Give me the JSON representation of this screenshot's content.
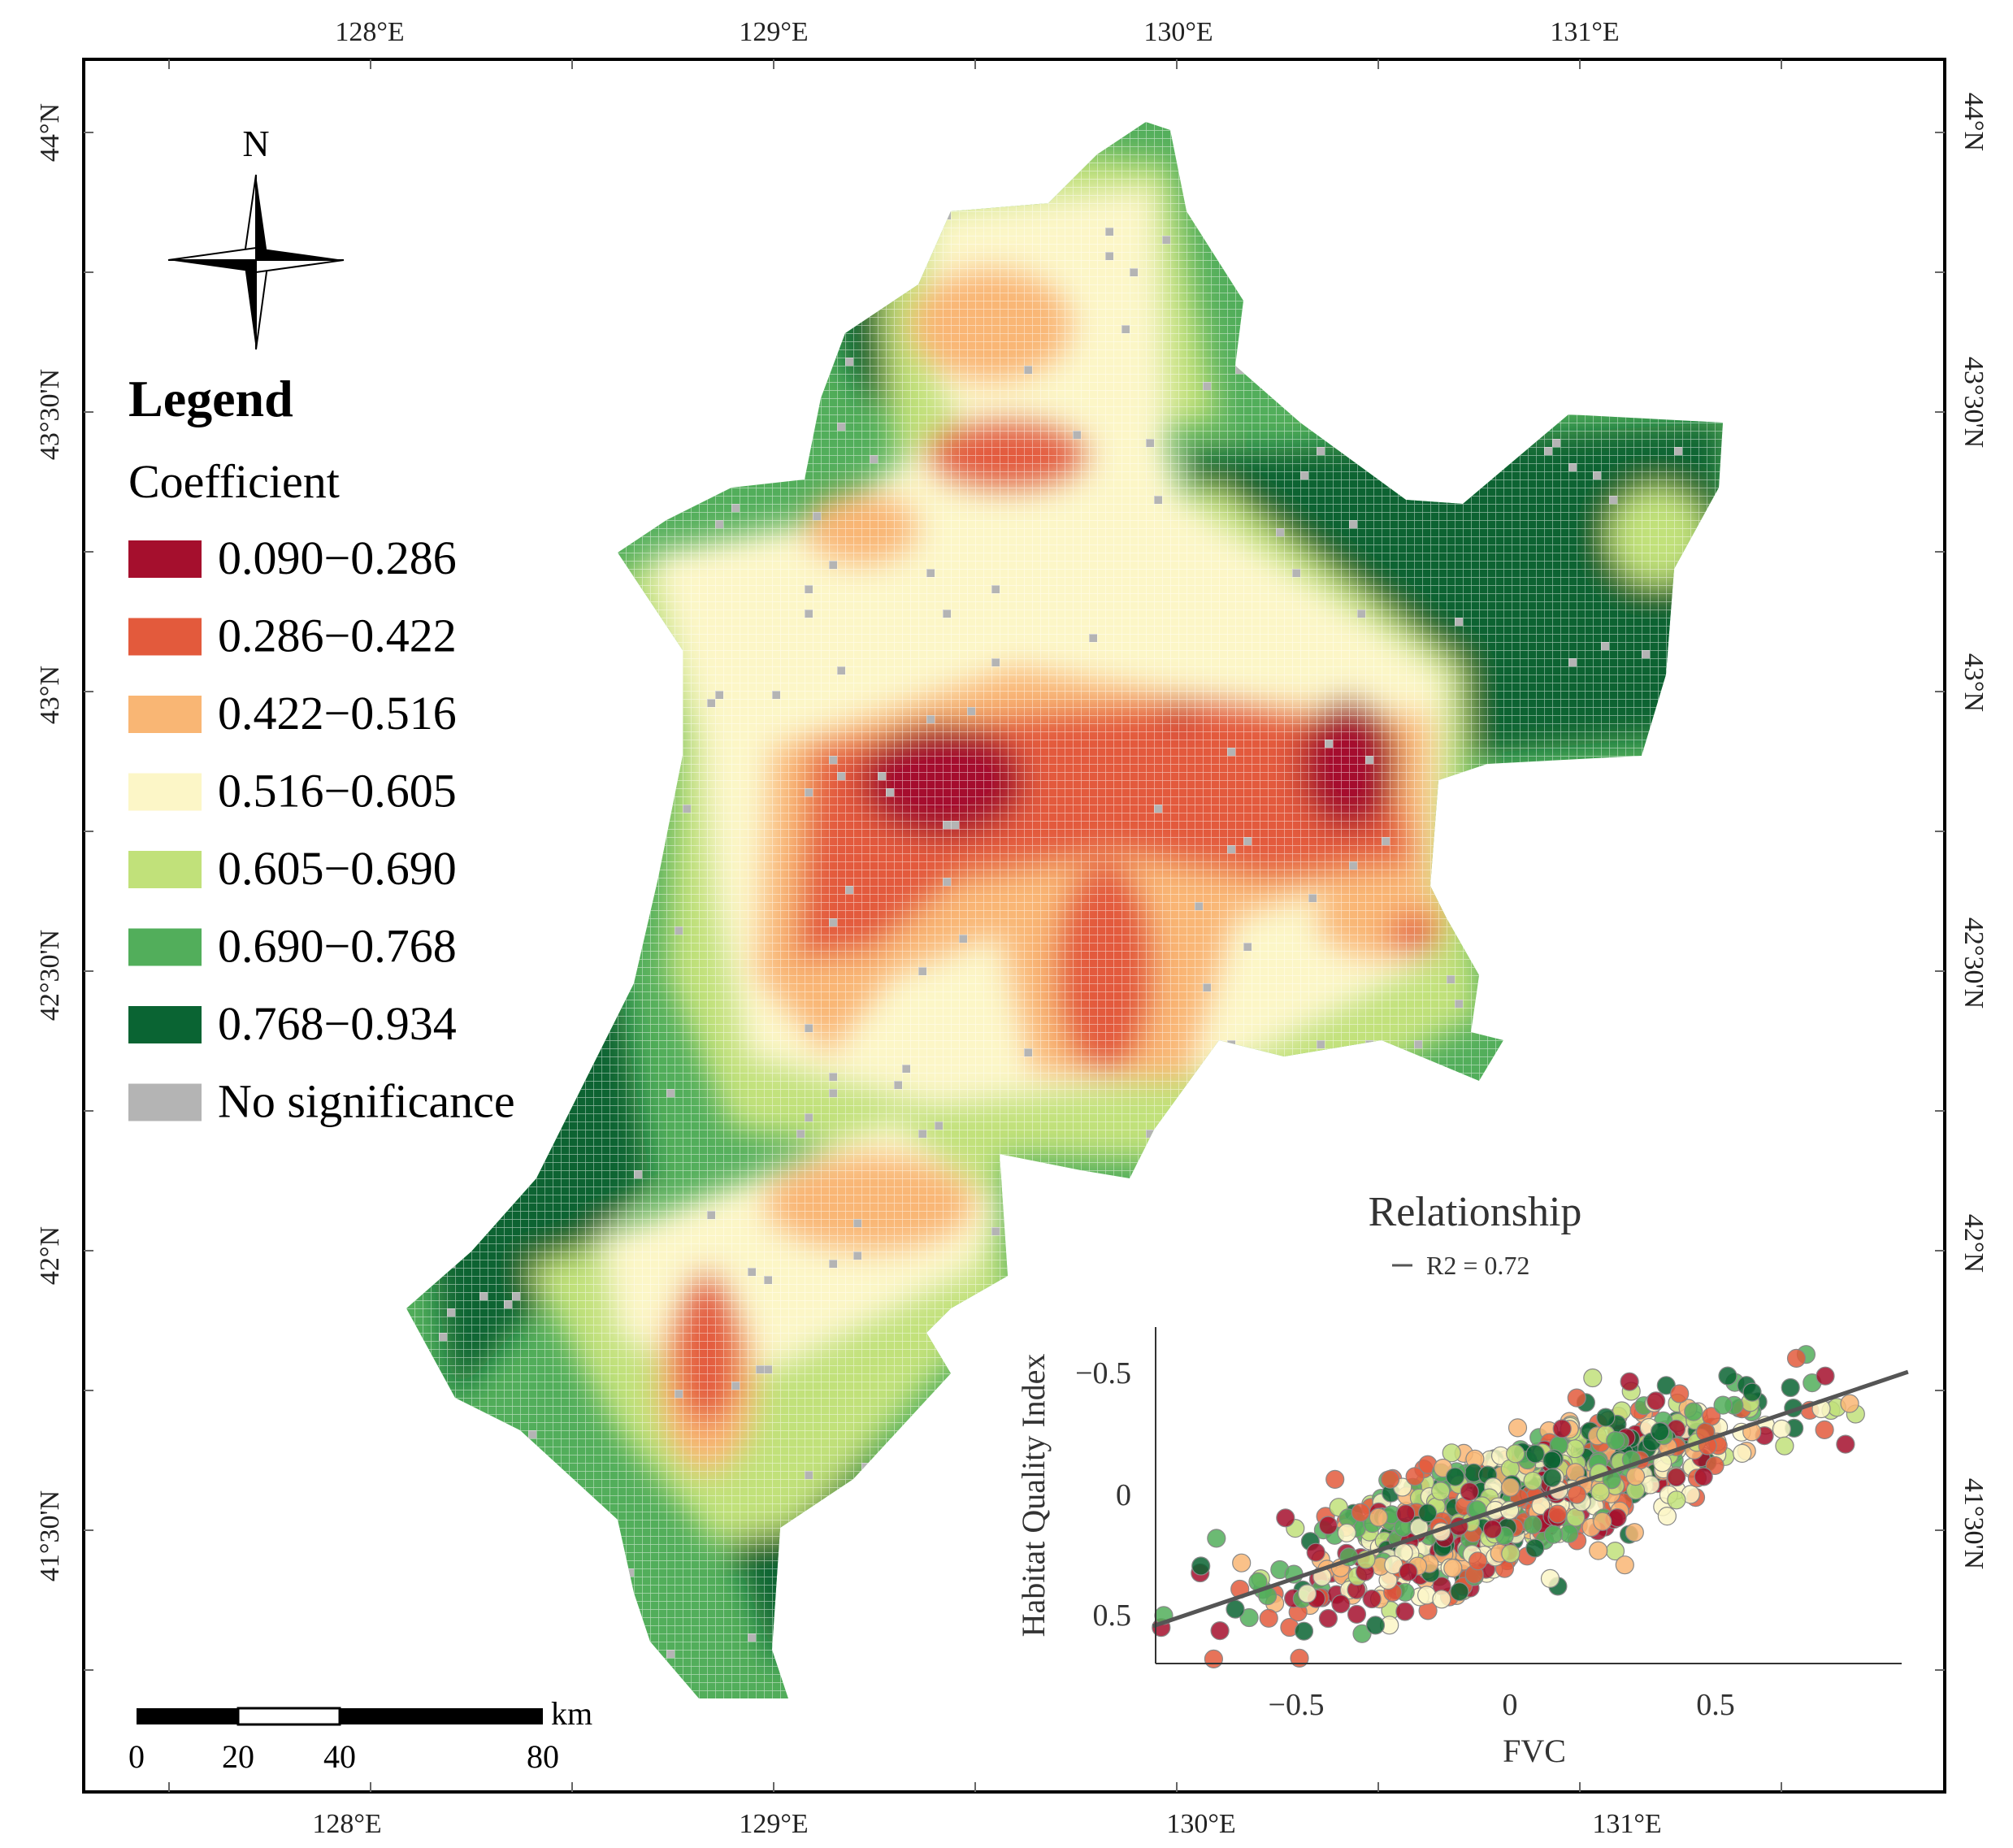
{
  "graticule": {
    "top_lon_labels": [
      "128°E",
      "129°E",
      "130°E",
      "131°E"
    ],
    "bottom_lon_labels": [
      "128°E",
      "129°E",
      "130°E",
      "131°E"
    ],
    "left_lat_labels": [
      "44°N",
      "43°30'N",
      "43°N",
      "42°30'N",
      "42°N",
      "41°30'N"
    ],
    "right_lat_labels": [
      "44°N",
      "43°30'N",
      "43°N",
      "42°30'N",
      "42°N",
      "41°30'N"
    ]
  },
  "north_arrow": {
    "label": "N"
  },
  "legend": {
    "title": "Legend",
    "subtitle": "Coefficient",
    "items": [
      {
        "label": "0.090−0.286",
        "color": "#a50f2d"
      },
      {
        "label": "0.286−0.422",
        "color": "#e35a3c"
      },
      {
        "label": "0.422−0.516",
        "color": "#f9b674"
      },
      {
        "label": "0.516−0.605",
        "color": "#fcf6c7"
      },
      {
        "label": "0.605−0.690",
        "color": "#c1e17a"
      },
      {
        "label": "0.690−0.768",
        "color": "#52ae5b"
      },
      {
        "label": "0.768−0.934",
        "color": "#0a6433"
      },
      {
        "label": "No significance",
        "color": "#b4b4b4"
      }
    ]
  },
  "scale_bar": {
    "unit": "km",
    "ticks": [
      "0",
      "20",
      "40",
      "80"
    ]
  },
  "inset": {
    "title": "Relationship",
    "fit_legend": "R2 = 0.72",
    "xlabel": "FVC",
    "ylabel": "Habitat Quality Index",
    "x_ticks": [
      "−0.5",
      "0",
      "0.5"
    ],
    "y_ticks": [
      "−0.5",
      "0",
      "0.5"
    ]
  },
  "chart_data": {
    "type": "scatter",
    "title": "Relationship",
    "xlabel": "FVC",
    "ylabel": "Habitat Quality Index",
    "xlim": [
      -0.87,
      0.97
    ],
    "ylim": [
      0.72,
      -0.68
    ],
    "y_axis_inverted": true,
    "fit_line": {
      "x": [
        -0.87,
        0.97
      ],
      "y": [
        0.5,
        -0.55
      ],
      "r2": 0.72
    },
    "point_count_approx": 900
  }
}
